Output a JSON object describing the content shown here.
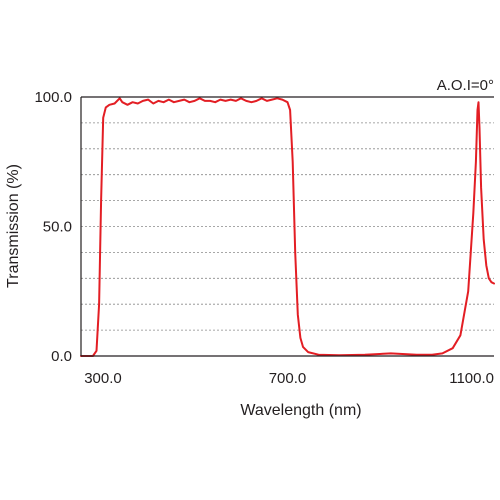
{
  "chart_data": {
    "type": "line",
    "title": "",
    "xlabel": "Wavelength (nm)",
    "ylabel": "Transmission (%)",
    "annotation": "A.O.I=0°",
    "xlim": [
      300,
      1100
    ],
    "ylim": [
      0,
      100
    ],
    "x_ticks": [
      {
        "value": 300,
        "label": "300.0"
      },
      {
        "value": 700,
        "label": "700.0"
      },
      {
        "value": 1100,
        "label": "1100.0"
      }
    ],
    "y_ticks": [
      {
        "value": 0,
        "label": "0.0"
      },
      {
        "value": 50,
        "label": "50.0"
      },
      {
        "value": 100,
        "label": "100.0"
      }
    ],
    "grid": "dashed horizontal",
    "line_color": "#e31e24",
    "series": [
      {
        "x": [
          300,
          323,
          330,
          335,
          339,
          343,
          348,
          355,
          365,
          375,
          380,
          390,
          400,
          410,
          420,
          430,
          440,
          450,
          460,
          470,
          480,
          490,
          500,
          510,
          520,
          530,
          540,
          550,
          560,
          570,
          580,
          590,
          600,
          610,
          620,
          630,
          640,
          650,
          660,
          670,
          680,
          690,
          700,
          705,
          710,
          715,
          720,
          725,
          730,
          740,
          760,
          800,
          850,
          900,
          950,
          980,
          1000,
          1020,
          1035,
          1050,
          1060,
          1065,
          1068,
          1070,
          1072,
          1075,
          1080,
          1085,
          1090,
          1095,
          1100
        ],
        "y": [
          0,
          0,
          2,
          20,
          60,
          92,
          96,
          97,
          97.5,
          99.5,
          98,
          97,
          98,
          97.5,
          98.5,
          99,
          97.5,
          98.5,
          98,
          99,
          98,
          98.5,
          99,
          98,
          98.5,
          99.5,
          98.5,
          98.5,
          98,
          99,
          98.5,
          99,
          98.5,
          99.5,
          98.5,
          98,
          98.5,
          99.5,
          98.5,
          99,
          99.5,
          99,
          98,
          95,
          75,
          40,
          16,
          7,
          3.5,
          1.5,
          0.5,
          0.3,
          0.5,
          1,
          0.5,
          0.5,
          1,
          3,
          8,
          25,
          55,
          75,
          95,
          98,
          88,
          65,
          45,
          35,
          30,
          28.5,
          28
        ]
      }
    ]
  }
}
